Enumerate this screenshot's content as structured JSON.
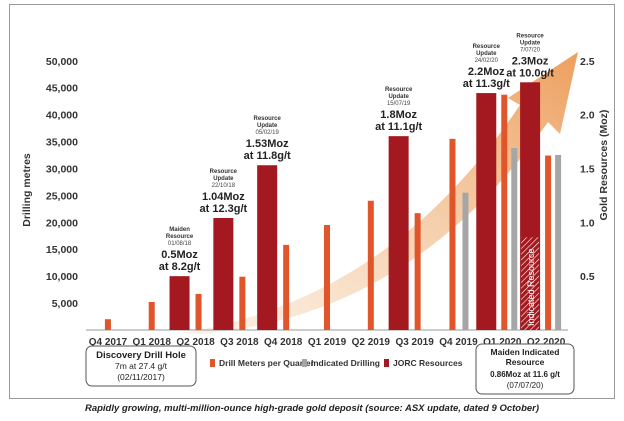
{
  "chart_data": {
    "type": "bar",
    "categories": [
      "Q4 2017",
      "Q1 2018",
      "Q2 2018",
      "Q3 2018",
      "Q4 2018",
      "Q1 2019",
      "Q2 2019",
      "Q3 2019",
      "Q4 2019",
      "Q1 2020",
      "Q2 2020"
    ],
    "ylabel": "Drilling metres",
    "y2label": "Gold Resources (Moz)",
    "ylim": [
      0,
      52000
    ],
    "y2lim": [
      0,
      2.6
    ],
    "yticks": [
      "5,000",
      "10,000",
      "15,000",
      "20,000",
      "25,000",
      "30,000",
      "35,000",
      "40,000",
      "45,000",
      "50,000"
    ],
    "y2ticks": [
      "0.5",
      "1.0",
      "1.5",
      "2.0",
      "2.5"
    ],
    "series": [
      {
        "name": "Drill Meters per Quarter",
        "color": "#e0562a",
        "values": [
          2000,
          5200,
          6700,
          9900,
          15800,
          19500,
          24000,
          21700,
          35500,
          43700,
          32400
        ]
      },
      {
        "name": "Indicated Drilling",
        "color": "#a6a6a6",
        "values": [
          null,
          null,
          null,
          null,
          null,
          null,
          null,
          null,
          25500,
          33800,
          32500
        ]
      },
      {
        "name": "JORC Resources",
        "color": "#a3191f",
        "values": [
          null,
          null,
          0.5,
          1.04,
          1.53,
          null,
          null,
          1.8,
          null,
          2.2,
          2.3
        ]
      }
    ],
    "indicated_resource": {
      "quarter": "Q2 2020",
      "value": 0.86,
      "label": "Indicated Resource"
    },
    "annotations": [
      {
        "quarter": "Q2 2018",
        "title": [
          "Maiden",
          "Resource"
        ],
        "date": "01/08/18",
        "value": [
          "0.5Moz",
          "at 8.2g/t"
        ]
      },
      {
        "quarter": "Q3 2018",
        "title": [
          "Resource",
          "Update"
        ],
        "date": "22/10/18",
        "value": [
          "1.04Moz",
          "at 12.3g/t"
        ]
      },
      {
        "quarter": "Q4 2018",
        "title": [
          "Resource",
          "Update"
        ],
        "date": "05/02/19",
        "value": [
          "1.53Moz",
          "at 11.8g/t"
        ]
      },
      {
        "quarter": "Q3 2019",
        "title": [
          "Resource",
          "Update"
        ],
        "date": "15/07/19",
        "value": [
          "1.8Moz",
          "at 11.1g/t"
        ]
      },
      {
        "quarter": "Q1 2020",
        "title": [
          "Resource",
          "Update"
        ],
        "date": "24/02/20",
        "value": [
          "2.2Moz",
          "at 11.3g/t"
        ]
      },
      {
        "quarter": "Q2 2020",
        "title": [
          "Resource",
          "Update"
        ],
        "date": "7/07/20",
        "value": [
          "2.3Moz",
          "at 10.0g/t"
        ]
      }
    ],
    "callouts": [
      {
        "id": "discovery",
        "lines": [
          "Discovery Drill Hole",
          "7m at 27.4 g/t",
          "(02/11/2017)"
        ]
      },
      {
        "id": "maiden-indicated",
        "lines": [
          "Maiden Indicated",
          "Resource",
          "0.86Moz at 11.6 g/t",
          "(07/07/20)"
        ]
      }
    ],
    "legend_position": "bottom",
    "grid": false
  },
  "caption": "Rapidly growing, multi-million-ounce high-grade gold deposit (source: ASX update, dated 9 October)"
}
